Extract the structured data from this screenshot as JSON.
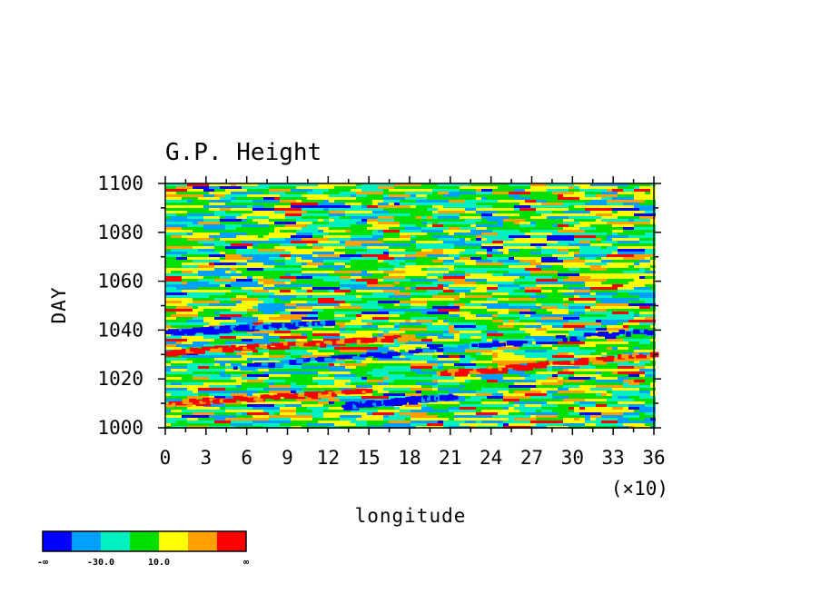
{
  "chart_data": {
    "type": "heatmap",
    "title": "G.P. Height",
    "xlabel": "longitude",
    "ylabel": "DAY",
    "x_multiplier_label": "(×10)",
    "xlim": [
      0,
      36
    ],
    "ylim": [
      1000,
      1100
    ],
    "x_ticks": [
      "0",
      "3",
      "6",
      "9",
      "12",
      "15",
      "18",
      "21",
      "24",
      "27",
      "30",
      "33",
      "36"
    ],
    "y_ticks": [
      "1000",
      "1020",
      "1040",
      "1060",
      "1080",
      "1100"
    ],
    "colorbar": {
      "colors": [
        "#0000ff",
        "#00a0ff",
        "#00f0c0",
        "#00e000",
        "#ffff00",
        "#ffa000",
        "#ff0000"
      ],
      "labels": [
        "-∞",
        "-30.0",
        "10.0",
        "∞"
      ]
    },
    "bands": [
      {
        "level": "low",
        "x_start": 0,
        "day_start": 1039,
        "x_end": 12,
        "day_end": 1043
      },
      {
        "level": "low",
        "x_start": 5,
        "day_start": 1025,
        "x_end": 36,
        "day_end": 1040
      },
      {
        "level": "low",
        "x_start": 13,
        "day_start": 1009,
        "x_end": 21,
        "day_end": 1013
      },
      {
        "level": "high",
        "x_start": 0,
        "day_start": 1031,
        "x_end": 18,
        "day_end": 1037
      },
      {
        "level": "high",
        "x_start": 20,
        "day_start": 1022,
        "x_end": 36,
        "day_end": 1030
      },
      {
        "level": "high",
        "x_start": 0,
        "day_start": 1010,
        "x_end": 15,
        "day_end": 1015
      }
    ]
  }
}
